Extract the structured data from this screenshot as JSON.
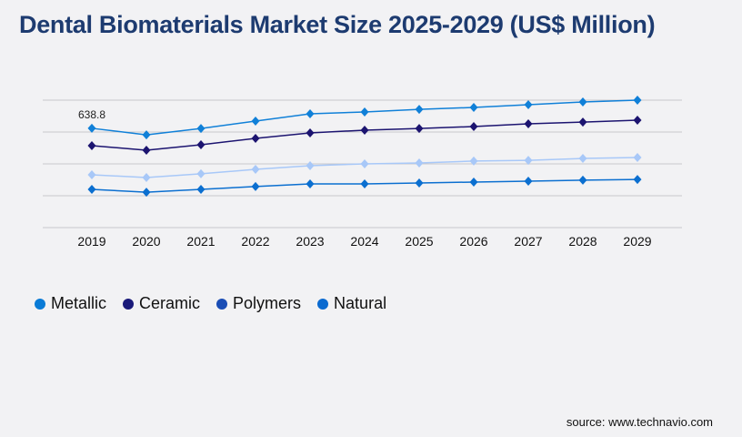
{
  "title": "Dental Biomaterials Market Size 2025-2029 (US$ Million)",
  "source": "source: www.technavio.com",
  "chart_data": {
    "type": "line",
    "title": "Dental Biomaterials Market Size 2025-2029 (US$ Million)",
    "xlabel": "",
    "ylabel": "",
    "categories": [
      "2019",
      "2020",
      "2021",
      "2022",
      "2023",
      "2024",
      "2025",
      "2026",
      "2027",
      "2028",
      "2029"
    ],
    "ylim": [
      0,
      820
    ],
    "grid": true,
    "legend_position": "bottom-left",
    "series": [
      {
        "name": "Metallic",
        "color": "#1080d8",
        "marker_color": "#0a7bd6",
        "values": [
          638.8,
          597,
          638,
          685,
          732,
          744,
          761,
          773,
          791,
          808,
          820
        ]
      },
      {
        "name": "Ceramic",
        "color": "#1c1470",
        "marker_color": "#1a1a7a",
        "values": [
          527,
          498,
          533,
          574,
          609,
          627,
          638,
          650,
          668,
          679,
          691
        ]
      },
      {
        "name": "Polymers",
        "color": "#a8c8f8",
        "marker_color": "#1a4db5",
        "values": [
          340,
          322,
          346,
          375,
          398,
          410,
          416,
          428,
          433,
          445,
          451
        ]
      },
      {
        "name": "Natural",
        "color": "#0b6fd0",
        "marker_color": "#0a6ad0",
        "values": [
          246,
          228,
          246,
          264,
          281,
          281,
          287,
          293,
          299,
          305,
          310
        ]
      }
    ],
    "annotations": [
      {
        "series": "Metallic",
        "category": "2019",
        "text": "638.8"
      }
    ]
  }
}
